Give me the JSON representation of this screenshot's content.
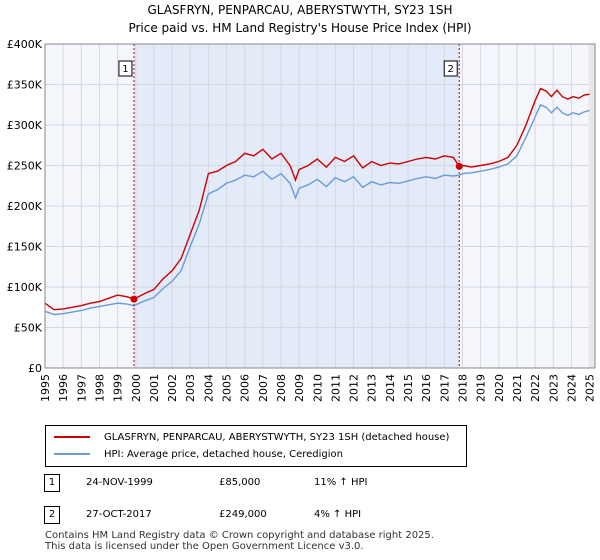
{
  "title_line1": "GLASFRYN, PENPARCAU, ABERYSTWYTH, SY23 1SH",
  "title_line2": "Price paid vs. HM Land Registry's House Price Index (HPI)",
  "chart_data": {
    "type": "line",
    "xlim": [
      1995,
      2025.3
    ],
    "ylim": [
      0,
      400000
    ],
    "x_ticks": [
      1995,
      1996,
      1997,
      1998,
      1999,
      2000,
      2001,
      2002,
      2003,
      2004,
      2005,
      2006,
      2007,
      2008,
      2009,
      2010,
      2011,
      2012,
      2013,
      2014,
      2015,
      2016,
      2017,
      2018,
      2019,
      2020,
      2021,
      2022,
      2023,
      2024,
      2025
    ],
    "y_ticks": [
      {
        "value": 0,
        "label": "£0"
      },
      {
        "value": 50000,
        "label": "£50K"
      },
      {
        "value": 100000,
        "label": "£100K"
      },
      {
        "value": 150000,
        "label": "£150K"
      },
      {
        "value": 200000,
        "label": "£200K"
      },
      {
        "value": 250000,
        "label": "£250K"
      },
      {
        "value": 300000,
        "label": "£300K"
      },
      {
        "value": 350000,
        "label": "£350K"
      },
      {
        "value": 400000,
        "label": "£400K"
      }
    ],
    "grid": true,
    "shaded_region": [
      1999.9,
      2017.82
    ],
    "series": [
      {
        "name": "GLASFRYN, PENPARCAU, ABERYSTWYTH, SY23 1SH (detached house)",
        "color": "#cc0000",
        "x": [
          1995.0,
          1995.5,
          1996.0,
          1996.5,
          1997.0,
          1997.5,
          1998.0,
          1998.5,
          1999.0,
          1999.5,
          1999.9,
          2000.5,
          2001.0,
          2001.5,
          2002.0,
          2002.5,
          2003.0,
          2003.5,
          2004.0,
          2004.5,
          2005.0,
          2005.5,
          2006.0,
          2006.5,
          2007.0,
          2007.5,
          2008.0,
          2008.5,
          2008.8,
          2009.0,
          2009.5,
          2010.0,
          2010.5,
          2011.0,
          2011.5,
          2012.0,
          2012.5,
          2013.0,
          2013.5,
          2014.0,
          2014.5,
          2015.0,
          2015.5,
          2016.0,
          2016.5,
          2017.0,
          2017.5,
          2017.82,
          2018.0,
          2018.5,
          2019.0,
          2019.5,
          2020.0,
          2020.5,
          2021.0,
          2021.5,
          2022.0,
          2022.3,
          2022.6,
          2022.9,
          2023.2,
          2023.5,
          2023.8,
          2024.1,
          2024.4,
          2024.7,
          2025.0
        ],
        "y": [
          80000,
          72000,
          73000,
          75000,
          77000,
          80000,
          82000,
          86000,
          90000,
          88000,
          85000,
          92000,
          97000,
          110000,
          120000,
          135000,
          165000,
          195000,
          240000,
          243000,
          250000,
          255000,
          265000,
          262000,
          270000,
          258000,
          265000,
          250000,
          232000,
          245000,
          250000,
          258000,
          248000,
          260000,
          255000,
          262000,
          247000,
          255000,
          250000,
          253000,
          252000,
          255000,
          258000,
          260000,
          258000,
          262000,
          260000,
          249000,
          250000,
          248000,
          250000,
          252000,
          255000,
          260000,
          275000,
          300000,
          330000,
          345000,
          342000,
          335000,
          343000,
          335000,
          332000,
          335000,
          333000,
          337000,
          338000
        ]
      },
      {
        "name": "HPI: Average price, detached house, Ceredigion",
        "color": "#6a9bd8",
        "x": [
          1995.0,
          1995.5,
          1996.0,
          1996.5,
          1997.0,
          1997.5,
          1998.0,
          1998.5,
          1999.0,
          1999.5,
          1999.9,
          2000.5,
          2001.0,
          2001.5,
          2002.0,
          2002.5,
          2003.0,
          2003.5,
          2004.0,
          2004.5,
          2005.0,
          2005.5,
          2006.0,
          2006.5,
          2007.0,
          2007.5,
          2008.0,
          2008.5,
          2008.8,
          2009.0,
          2009.5,
          2010.0,
          2010.5,
          2011.0,
          2011.5,
          2012.0,
          2012.5,
          2013.0,
          2013.5,
          2014.0,
          2014.5,
          2015.0,
          2015.5,
          2016.0,
          2016.5,
          2017.0,
          2017.5,
          2017.82,
          2018.0,
          2018.5,
          2019.0,
          2019.5,
          2020.0,
          2020.5,
          2021.0,
          2021.5,
          2022.0,
          2022.3,
          2022.6,
          2022.9,
          2023.2,
          2023.5,
          2023.8,
          2024.1,
          2024.4,
          2024.7,
          2025.0
        ],
        "y": [
          70000,
          66000,
          67000,
          69000,
          71000,
          74000,
          76000,
          78000,
          80000,
          79000,
          77000,
          83000,
          87000,
          98000,
          107000,
          120000,
          150000,
          178000,
          215000,
          220000,
          228000,
          232000,
          238000,
          236000,
          243000,
          233000,
          240000,
          228000,
          210000,
          222000,
          226000,
          233000,
          224000,
          235000,
          230000,
          236000,
          223000,
          230000,
          226000,
          229000,
          228000,
          231000,
          234000,
          236000,
          234000,
          238000,
          237000,
          238000,
          240000,
          241000,
          243000,
          245000,
          248000,
          252000,
          262000,
          285000,
          310000,
          325000,
          322000,
          315000,
          322000,
          315000,
          312000,
          315000,
          313000,
          316000,
          318000
        ]
      }
    ],
    "markers": [
      {
        "label": "1",
        "x": 1999.9,
        "y": 85000
      },
      {
        "label": "2",
        "x": 2017.82,
        "y": 249000
      }
    ]
  },
  "legend": {
    "entries": [
      {
        "label": "GLASFRYN, PENPARCAU, ABERYSTWYTH, SY23 1SH (detached house)",
        "color": "#cc0000"
      },
      {
        "label": "HPI: Average price, detached house, Ceredigion",
        "color": "#6a9bd8"
      }
    ]
  },
  "transactions": [
    {
      "num": "1",
      "date": "24-NOV-1999",
      "price": "£85,000",
      "hpi": "11% ↑ HPI"
    },
    {
      "num": "2",
      "date": "27-OCT-2017",
      "price": "£249,000",
      "hpi": "4% ↑ HPI"
    }
  ],
  "footer_line1": "Contains HM Land Registry data © Crown copyright and database right 2025.",
  "footer_line2": "This data is licensed under the Open Government Licence v3.0."
}
